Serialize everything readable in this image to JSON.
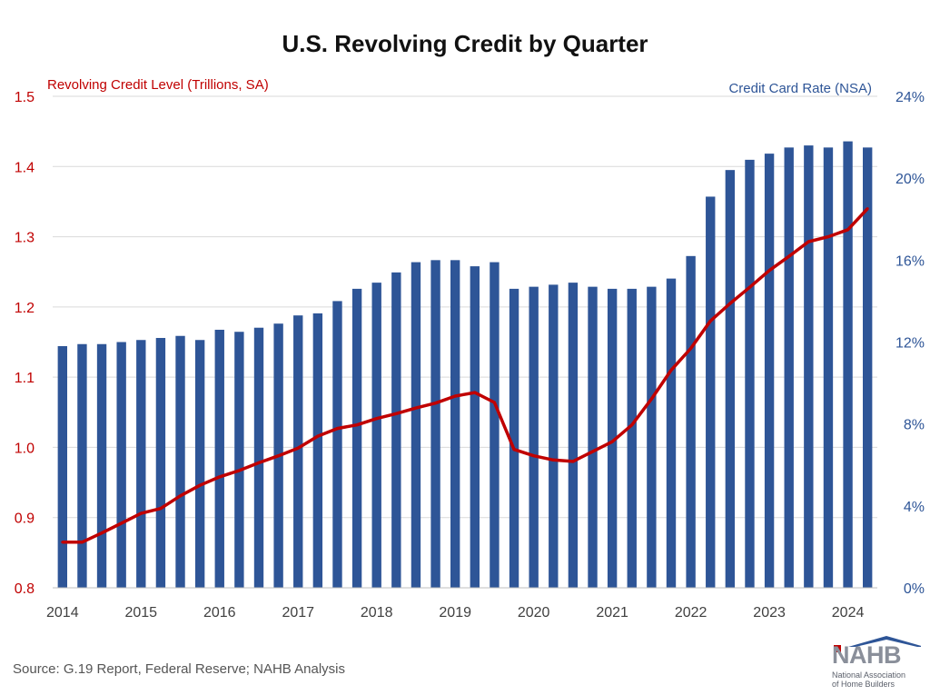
{
  "chart_data": {
    "type": "bar",
    "title": "U.S. Revolving Credit by Quarter",
    "left_axis_label": "Revolving Credit Level (Trillions, SA)",
    "right_axis_label": "Credit Card Rate (NSA)",
    "ylim_left": [
      0.8,
      1.5
    ],
    "ylim_right": [
      0,
      24
    ],
    "yticks_left": [
      "0.8",
      "0.9",
      "1.0",
      "1.1",
      "1.2",
      "1.3",
      "1.4",
      "1.5"
    ],
    "yticks_right": [
      "0%",
      "4%",
      "8%",
      "12%",
      "16%",
      "20%",
      "24%"
    ],
    "xticks": [
      "2014",
      "2015",
      "2016",
      "2017",
      "2018",
      "2019",
      "2020",
      "2021",
      "2022",
      "2023",
      "2024"
    ],
    "quarters": [
      "2014 Q1",
      "2014 Q2",
      "2014 Q3",
      "2014 Q4",
      "2015 Q1",
      "2015 Q2",
      "2015 Q3",
      "2015 Q4",
      "2016 Q1",
      "2016 Q2",
      "2016 Q3",
      "2016 Q4",
      "2017 Q1",
      "2017 Q2",
      "2017 Q3",
      "2017 Q4",
      "2018 Q1",
      "2018 Q2",
      "2018 Q3",
      "2018 Q4",
      "2019 Q1",
      "2019 Q2",
      "2019 Q3",
      "2019 Q4",
      "2020 Q1",
      "2020 Q2",
      "2020 Q3",
      "2020 Q4",
      "2021 Q1",
      "2021 Q2",
      "2021 Q3",
      "2021 Q4",
      "2022 Q1",
      "2022 Q2",
      "2022 Q3",
      "2022 Q4",
      "2023 Q1",
      "2023 Q2",
      "2023 Q3",
      "2023 Q4",
      "2024 Q1",
      "2024 Q2"
    ],
    "series": [
      {
        "name": "Credit Card Rate (NSA)",
        "kind": "bar",
        "axis": "right",
        "color": "#2e5597",
        "values": [
          11.8,
          11.9,
          11.9,
          12.0,
          12.1,
          12.2,
          12.3,
          12.1,
          12.6,
          12.5,
          12.7,
          12.9,
          13.3,
          13.4,
          14.0,
          14.6,
          14.9,
          15.4,
          15.9,
          16.0,
          16.0,
          15.7,
          15.9,
          14.6,
          14.7,
          14.8,
          14.9,
          14.7,
          14.6,
          14.6,
          14.7,
          15.1,
          16.2,
          19.1,
          20.4,
          20.9,
          21.2,
          21.5,
          21.6,
          21.5,
          21.8,
          21.5
        ]
      },
      {
        "name": "Revolving Credit Level (Trillions, SA)",
        "kind": "line",
        "axis": "left",
        "color": "#c00000",
        "values": [
          0.865,
          0.865,
          0.878,
          0.892,
          0.906,
          0.913,
          0.931,
          0.946,
          0.958,
          0.967,
          0.978,
          0.988,
          0.999,
          1.016,
          1.027,
          1.032,
          1.041,
          1.048,
          1.056,
          1.063,
          1.073,
          1.078,
          1.064,
          0.997,
          0.988,
          0.982,
          0.98,
          0.994,
          1.008,
          1.032,
          1.069,
          1.11,
          1.141,
          1.18,
          1.205,
          1.228,
          1.252,
          1.272,
          1.293,
          1.3,
          1.31,
          1.34
        ]
      }
    ],
    "grid": true,
    "legend": "none"
  },
  "source": "Source: G.19 Report, Federal Reserve; NAHB Analysis",
  "logo": {
    "word": "NAHB",
    "line1": "National Association",
    "line2": "of Home Builders"
  },
  "colors": {
    "bar": "#2e5597",
    "line": "#c00000",
    "left_axis_text": "#c00000",
    "right_axis_text": "#2e5597",
    "grid": "#d9d9d9"
  }
}
